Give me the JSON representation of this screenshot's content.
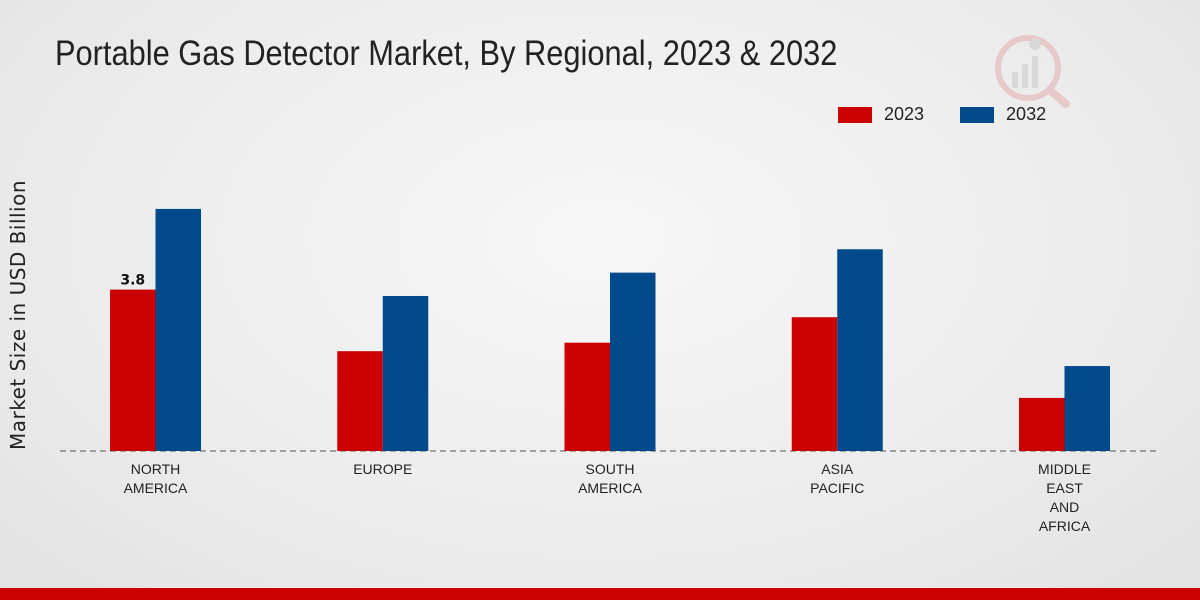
{
  "chart_data": {
    "type": "bar",
    "title": "Portable Gas Detector Market, By Regional, 2023 & 2032",
    "xlabel": "",
    "ylabel": "Market Size in USD Billion",
    "categories": [
      [
        "NORTH",
        "AMERICA"
      ],
      [
        "EUROPE"
      ],
      [
        "SOUTH",
        "AMERICA"
      ],
      [
        "ASIA",
        "PACIFIC"
      ],
      [
        "MIDDLE",
        "EAST",
        "AND",
        "AFRICA"
      ]
    ],
    "series": [
      {
        "name": "2023",
        "color": "#cc0000",
        "values": [
          3.8,
          2.35,
          2.55,
          3.15,
          1.25
        ]
      },
      {
        "name": "2032",
        "color": "#004a8c",
        "values": [
          5.7,
          3.65,
          4.2,
          4.75,
          2.0
        ]
      }
    ],
    "data_labels": [
      {
        "series": 0,
        "index": 0,
        "text": "3.8"
      }
    ],
    "ylim": [
      0,
      8.5
    ],
    "grid": false,
    "legend_position": "top-right"
  }
}
